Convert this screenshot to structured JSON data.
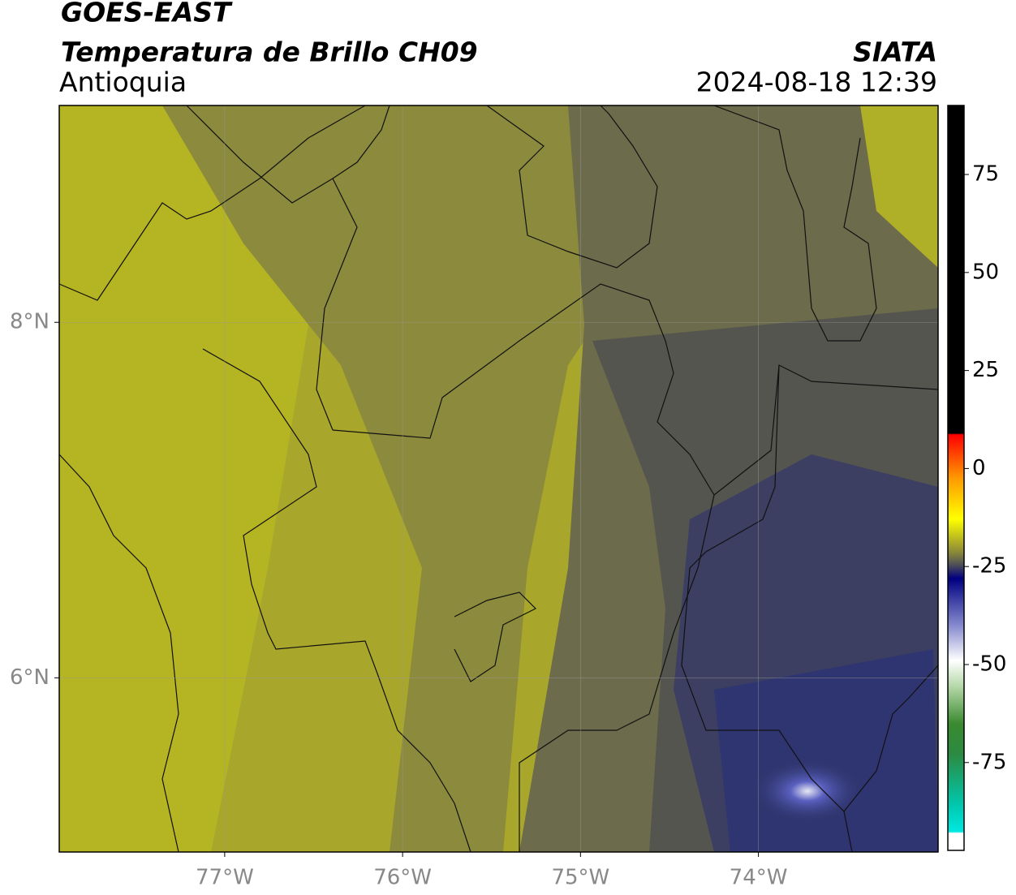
{
  "header": {
    "title": "GOES-EAST",
    "subtitle": "Temperatura de Brillo CH09",
    "region": "Antioquia",
    "source": "SIATA",
    "datetime": "2024-08-18 12:39"
  },
  "map": {
    "xlim": [
      -77.93,
      -72.99
    ],
    "ylim": [
      5.02,
      9.22
    ],
    "xticks": [
      {
        "value": -77,
        "label": "77°W"
      },
      {
        "value": -76,
        "label": "76°W"
      },
      {
        "value": -75,
        "label": "75°W"
      },
      {
        "value": -74,
        "label": "74°W"
      }
    ],
    "yticks": [
      {
        "value": 8,
        "label": "8°N"
      },
      {
        "value": 6,
        "label": "6°N"
      }
    ],
    "grid": true
  },
  "colorbar": {
    "clim": [
      -97.4,
      92.6
    ],
    "ticks": [
      75,
      50,
      25,
      0,
      -25,
      -50,
      -75
    ]
  }
}
